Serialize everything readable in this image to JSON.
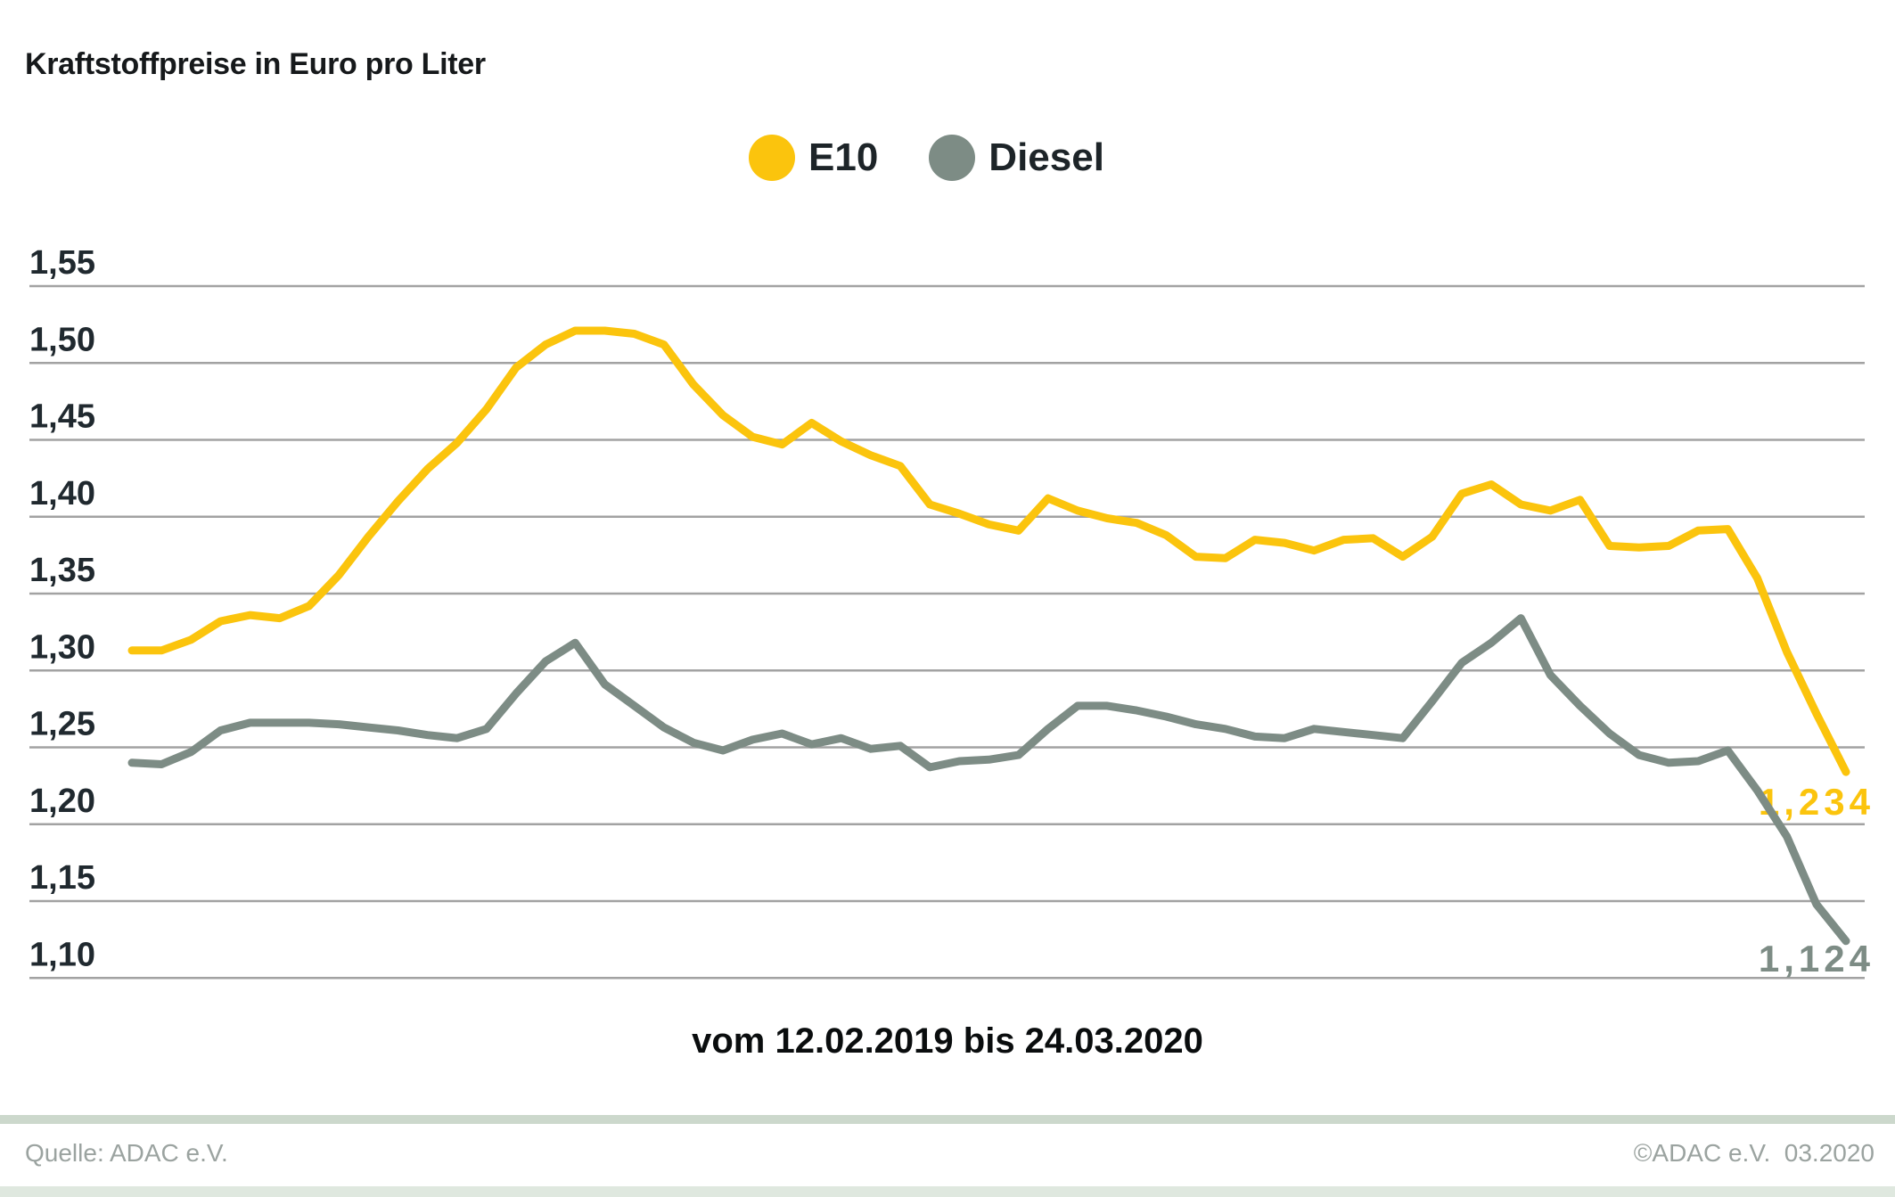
{
  "title": "Kraftstoffpreise in Euro pro Liter",
  "legend": {
    "e10": {
      "label": "E10",
      "color": "#FBC40D"
    },
    "diesel": {
      "label": "Diesel",
      "color": "#7D8C85"
    }
  },
  "caption": "vom 12.02.2019 bis 24.03.2020",
  "footer": {
    "source": "Quelle: ADAC e.V.",
    "copyright": "©ADAC e.V.  03.2020"
  },
  "colors": {
    "e10_line": "#FBC40D",
    "diesel_line": "#7D8C85",
    "gridline": "#a2a2a2",
    "tick_text": "#20292f",
    "divider": "#ccd8cc",
    "bottom_band": "#dfe8df"
  },
  "chart_data": {
    "type": "line",
    "title": "Kraftstoffpreise in Euro pro Liter",
    "ylabel": "Euro pro Liter",
    "xlabel": "vom 12.02.2019 bis 24.03.2020",
    "ylim": [
      1.1,
      1.55
    ],
    "grid": "horizontal",
    "legend_position": "top-center",
    "x_description": "weekly price readings, 12.02.2019 to 24.03.2020",
    "y_ticks": [
      {
        "label": "1,55",
        "value": 1.55
      },
      {
        "label": "1,50",
        "value": 1.5
      },
      {
        "label": "1,45",
        "value": 1.45
      },
      {
        "label": "1,40",
        "value": 1.4
      },
      {
        "label": "1,35",
        "value": 1.35
      },
      {
        "label": "1,30",
        "value": 1.3
      },
      {
        "label": "1,25",
        "value": 1.25
      },
      {
        "label": "1,20",
        "value": 1.2
      },
      {
        "label": "1,15",
        "value": 1.15
      },
      {
        "label": "1,10",
        "value": 1.1
      }
    ],
    "series": [
      {
        "name": "E10",
        "color": "#FBC40D",
        "end_label": "1,234",
        "final_value": 1.234,
        "values": [
          1.313,
          1.313,
          1.32,
          1.332,
          1.336,
          1.334,
          1.342,
          1.362,
          1.387,
          1.41,
          1.431,
          1.448,
          1.47,
          1.497,
          1.512,
          1.521,
          1.521,
          1.519,
          1.512,
          1.486,
          1.466,
          1.452,
          1.447,
          1.461,
          1.449,
          1.44,
          1.433,
          1.408,
          1.402,
          1.395,
          1.391,
          1.412,
          1.404,
          1.399,
          1.396,
          1.388,
          1.374,
          1.373,
          1.385,
          1.383,
          1.378,
          1.385,
          1.386,
          1.374,
          1.387,
          1.415,
          1.421,
          1.408,
          1.404,
          1.411,
          1.381,
          1.38,
          1.381,
          1.391,
          1.392,
          1.36,
          1.312,
          1.272,
          1.234
        ]
      },
      {
        "name": "Diesel",
        "color": "#7D8C85",
        "end_label": "1,124",
        "final_value": 1.124,
        "values": [
          1.24,
          1.239,
          1.247,
          1.261,
          1.266,
          1.266,
          1.266,
          1.265,
          1.263,
          1.261,
          1.258,
          1.256,
          1.262,
          1.285,
          1.306,
          1.318,
          1.291,
          1.277,
          1.263,
          1.253,
          1.248,
          1.255,
          1.259,
          1.252,
          1.256,
          1.249,
          1.251,
          1.237,
          1.241,
          1.242,
          1.245,
          1.262,
          1.277,
          1.277,
          1.274,
          1.27,
          1.265,
          1.262,
          1.257,
          1.256,
          1.262,
          1.26,
          1.258,
          1.256,
          1.28,
          1.305,
          1.318,
          1.334,
          1.297,
          1.277,
          1.259,
          1.245,
          1.24,
          1.241,
          1.248,
          1.222,
          1.192,
          1.148,
          1.124
        ]
      }
    ]
  }
}
